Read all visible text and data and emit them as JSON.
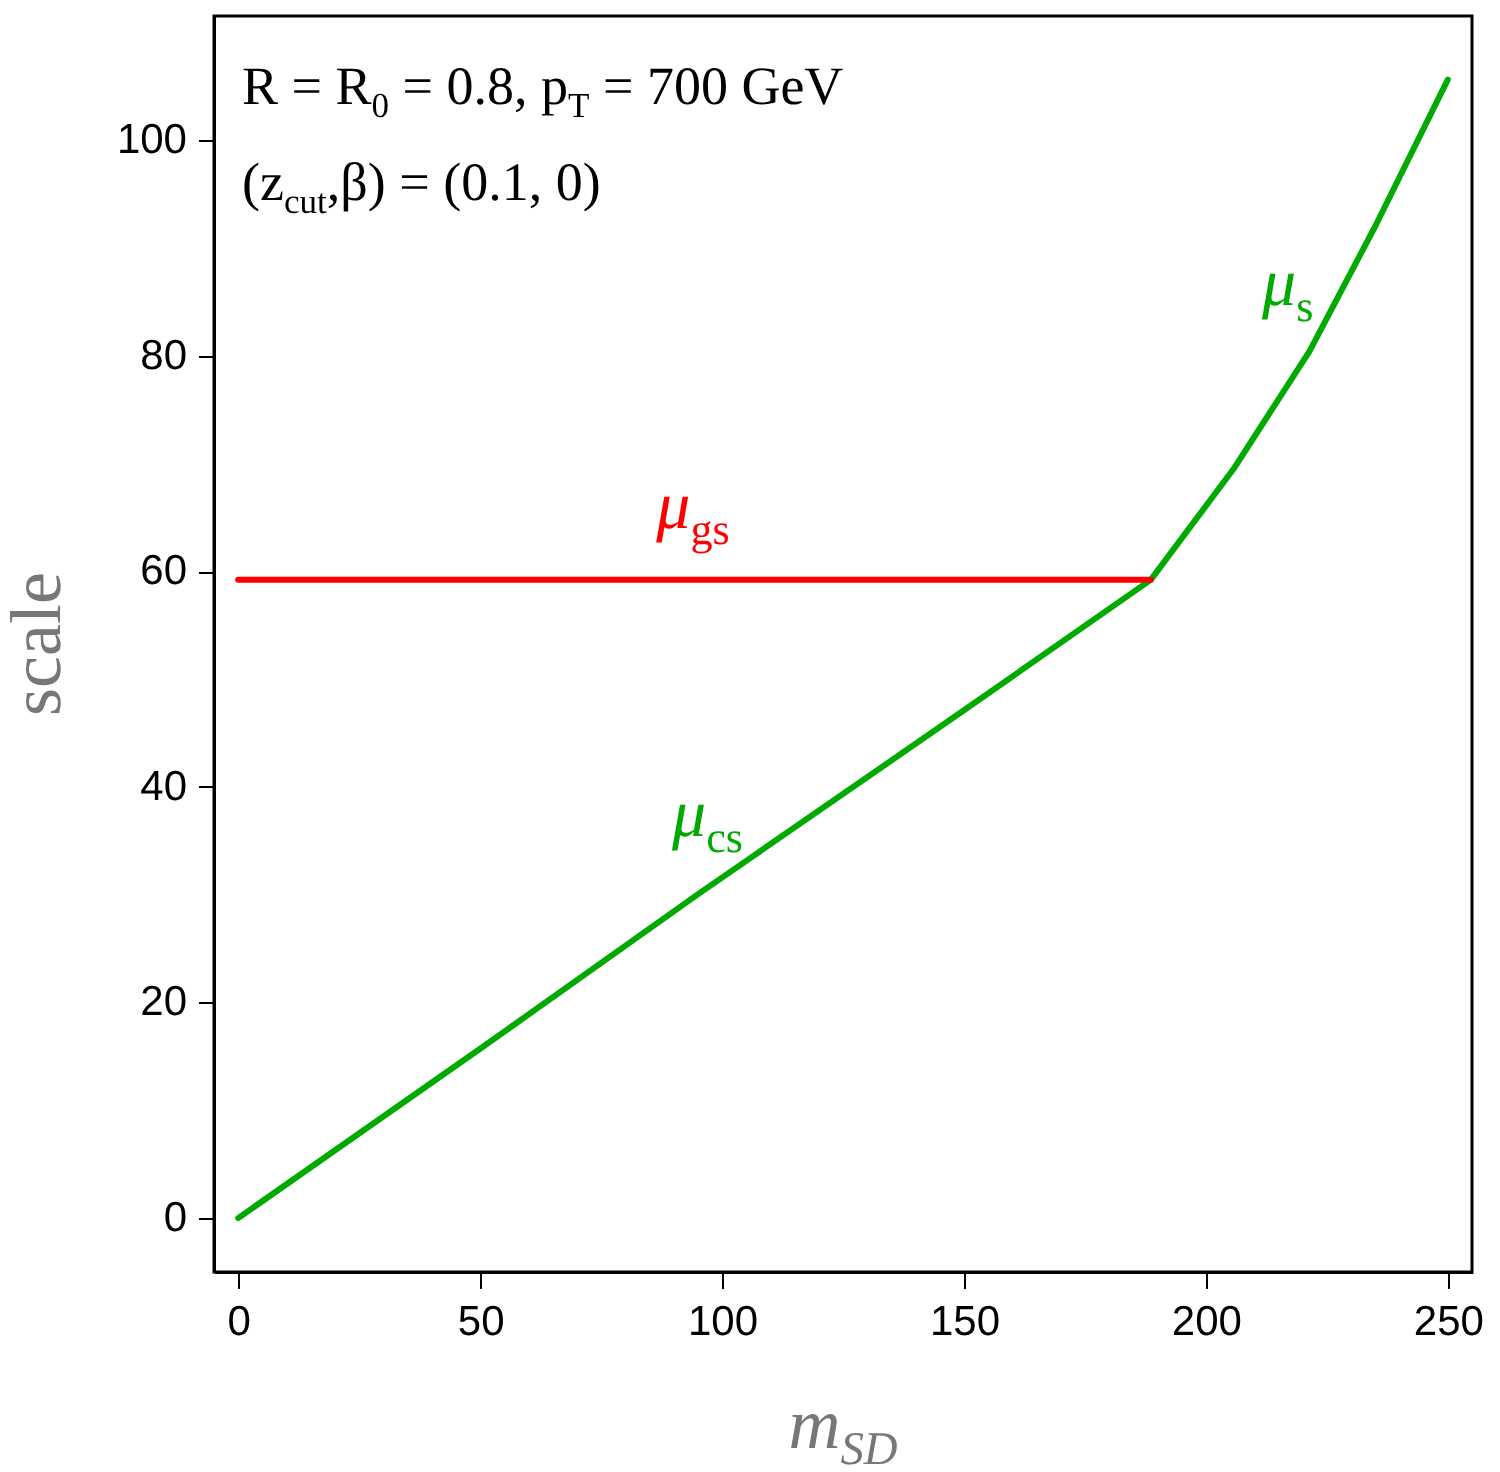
{
  "chart_data": {
    "type": "line",
    "xlabel": "m$_{SD}$",
    "ylabel": "scale",
    "annotations": [
      "R = R$_{0}$ = 0.8, p$_{T}$ = 700 GeV",
      "(z$_{cut}$,β) = (0.1, 0)",
      {
        "text": "μ$_{cs}$",
        "x": 97,
        "y": 30.6
      },
      {
        "text": "μ$_{s}$",
        "x": 228,
        "y": 86
      },
      {
        "text": "μ$_{gs}$",
        "x": 94,
        "y": 59.2
      }
    ],
    "series": [
      {
        "color": "#00aa00",
        "x": [
          0,
          50,
          95.2,
          150,
          188.6,
          205.9,
          221.4,
          235,
          250
        ],
        "values": [
          0,
          15.7,
          30.1,
          47.1,
          59.2,
          69.6,
          80.4,
          92,
          105.6
        ]
      },
      {
        "color": "#ff0000",
        "x": [
          0,
          188.6
        ],
        "values": [
          59.2,
          59.2
        ]
      }
    ],
    "xlim": [
      -5,
      255
    ],
    "ylim": [
      -5,
      111.5
    ],
    "xticks": [
      0,
      50,
      100,
      150,
      200,
      250
    ],
    "yticks": [
      0,
      20,
      40,
      60,
      80,
      100
    ],
    "grid": false,
    "line_style": "solid",
    "marker": "none"
  }
}
